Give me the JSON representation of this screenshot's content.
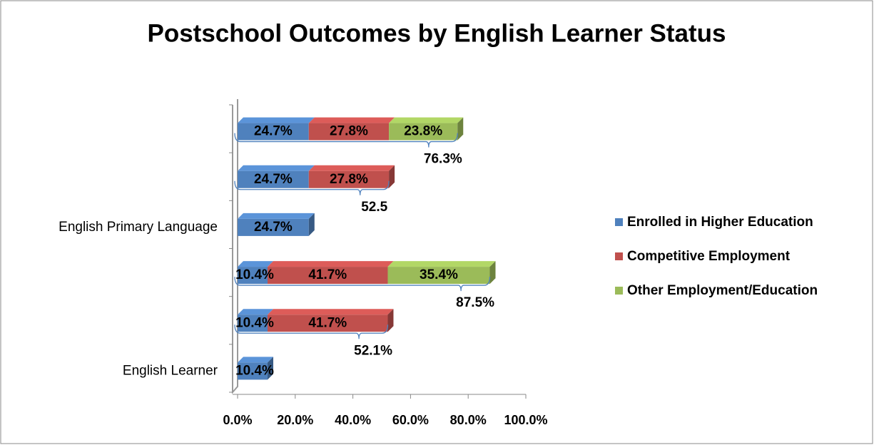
{
  "chart_data": {
    "type": "stacked-bar-horizontal",
    "title": "Postschool Outcomes by English Learner Status",
    "categories": [
      null,
      null,
      "English Primary Language",
      null,
      null,
      "English Learner"
    ],
    "series": [
      {
        "name": "Enrolled in Higher Education",
        "color": "#4f81bd",
        "values": [
          24.7,
          24.7,
          24.7,
          10.4,
          10.4,
          10.4
        ],
        "value_labels": [
          "24.7%",
          "24.7%",
          "24.7%",
          "10.4%",
          "10.4%",
          "10.4%"
        ]
      },
      {
        "name": "Competitive Employment",
        "color": "#c0504d",
        "values": [
          27.8,
          27.8,
          null,
          41.7,
          41.7,
          null
        ],
        "value_labels": [
          "27.8%",
          "27.8%",
          null,
          "41.7%",
          "41.7%",
          null
        ]
      },
      {
        "name": "Other Employment/Education",
        "color": "#9bbb59",
        "values": [
          23.8,
          null,
          null,
          35.4,
          null,
          null
        ],
        "value_labels": [
          "23.8%",
          null,
          null,
          "35.4%",
          null,
          null
        ]
      }
    ],
    "totals": {
      "values": [
        76.3,
        52.5,
        null,
        87.5,
        52.1,
        null
      ],
      "value_labels": [
        "76.3%",
        "52.5",
        null,
        "87.5%",
        "52.1%",
        null
      ]
    },
    "xlim": [
      0,
      100
    ],
    "xticks": [
      {
        "value": 0,
        "label": "0.0%"
      },
      {
        "value": 20,
        "label": "20.0%"
      },
      {
        "value": 40,
        "label": "40.0%"
      },
      {
        "value": 60,
        "label": "60.0%"
      },
      {
        "value": 80,
        "label": "80.0%"
      },
      {
        "value": 100,
        "label": "100.0%"
      }
    ],
    "legend": "right"
  }
}
